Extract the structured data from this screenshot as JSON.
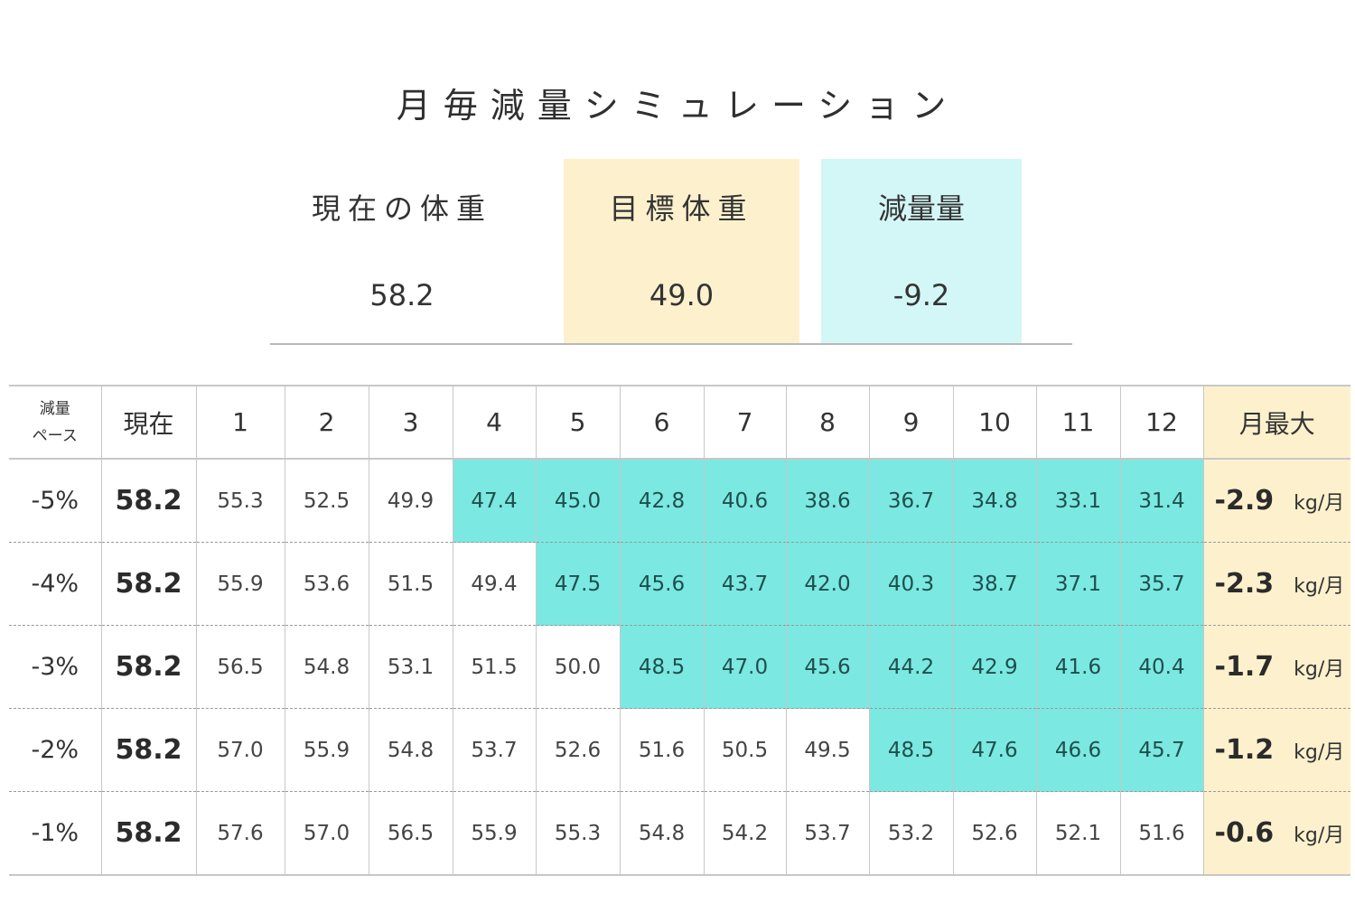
{
  "title": "月毎減量シミュレーション",
  "summary": {
    "current_label": "現在の体重",
    "current_value": "58.2",
    "target_label": "目標体重",
    "target_value": "49.0",
    "loss_label": "減量量",
    "loss_value": "-9.2"
  },
  "table": {
    "pace_header_line1": "減量",
    "pace_header_line2": "ペース",
    "current_header": "現在",
    "month_headers": [
      "1",
      "2",
      "3",
      "4",
      "5",
      "6",
      "7",
      "8",
      "9",
      "10",
      "11",
      "12"
    ],
    "max_header": "月最大",
    "unit": "kg/月",
    "rows": [
      {
        "pace": "-5%",
        "current": "58.2",
        "months": [
          "55.3",
          "52.5",
          "49.9",
          "47.4",
          "45.0",
          "42.8",
          "40.6",
          "38.6",
          "36.7",
          "34.8",
          "33.1",
          "31.4"
        ],
        "max": "-2.9"
      },
      {
        "pace": "-4%",
        "current": "58.2",
        "months": [
          "55.9",
          "53.6",
          "51.5",
          "49.4",
          "47.5",
          "45.6",
          "43.7",
          "42.0",
          "40.3",
          "38.7",
          "37.1",
          "35.7"
        ],
        "max": "-2.3"
      },
      {
        "pace": "-3%",
        "current": "58.2",
        "months": [
          "56.5",
          "54.8",
          "53.1",
          "51.5",
          "50.0",
          "48.5",
          "47.0",
          "45.6",
          "44.2",
          "42.9",
          "41.6",
          "40.4"
        ],
        "max": "-1.7"
      },
      {
        "pace": "-2%",
        "current": "58.2",
        "months": [
          "57.0",
          "55.9",
          "54.8",
          "53.7",
          "52.6",
          "51.6",
          "50.5",
          "49.5",
          "48.5",
          "47.6",
          "46.6",
          "45.7"
        ],
        "max": "-1.2"
      },
      {
        "pace": "-1%",
        "current": "58.2",
        "months": [
          "57.6",
          "57.0",
          "56.5",
          "55.9",
          "55.3",
          "54.8",
          "54.2",
          "53.7",
          "53.2",
          "52.6",
          "52.1",
          "51.6"
        ],
        "max": "-0.6"
      }
    ]
  },
  "colors": {
    "highlight": "#7be8e2",
    "target_bg": "#fdf1cd",
    "loss_bg": "#d3f7f6"
  }
}
